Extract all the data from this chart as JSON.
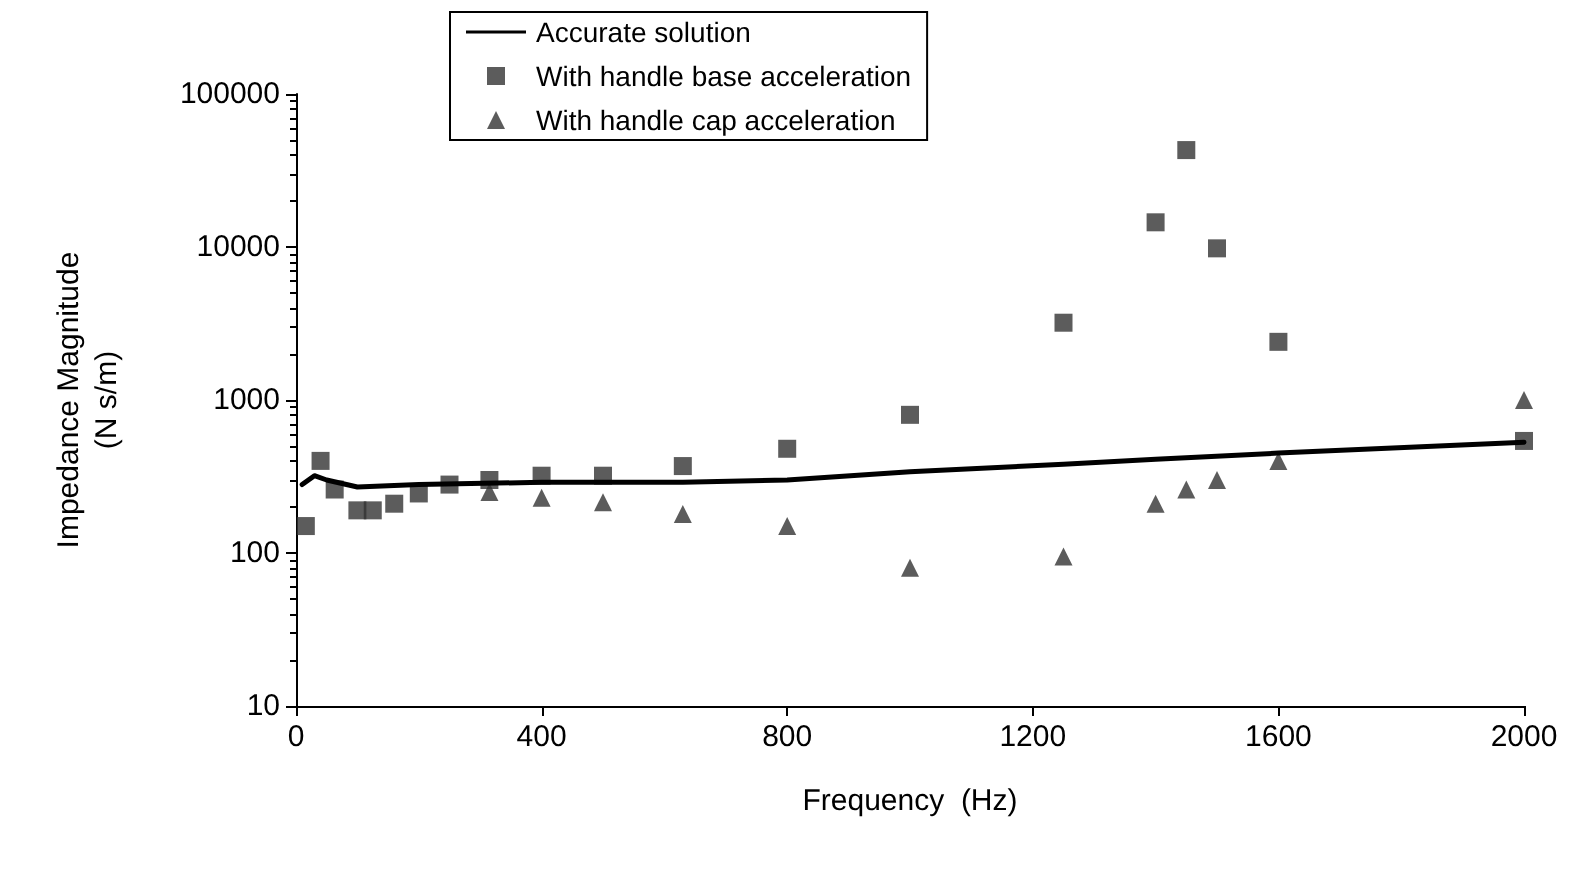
{
  "chart_data": {
    "type": "scatter",
    "xlabel": "Frequency  (Hz)",
    "ylabel": "Impedance Magnitude\n(N s/m)",
    "xlim": [
      0,
      2000
    ],
    "xticks": [
      0,
      400,
      800,
      1200,
      1600,
      2000
    ],
    "ylim": [
      10,
      100000
    ],
    "yticks": [
      10,
      100,
      1000,
      10000,
      100000
    ],
    "log": "y",
    "grid": false,
    "legend": "top left",
    "series": [
      {
        "name": "Accurate solution",
        "type": "line",
        "color": "#000000",
        "marker": "none",
        "line_style": "solid",
        "x": [
          10,
          30,
          50,
          100,
          200,
          400,
          630,
          800,
          1000,
          1250,
          1400,
          1600,
          2000
        ],
        "values": [
          280,
          320,
          300,
          270,
          280,
          290,
          290,
          300,
          340,
          380,
          410,
          450,
          530
        ]
      },
      {
        "name": "With handle base acceleration",
        "color": "#333333",
        "marker": "square",
        "x": [
          16,
          31.5,
          40,
          63,
          100,
          125,
          160,
          200,
          250,
          315,
          400,
          500,
          630,
          800,
          1000,
          1250,
          1400,
          1450,
          1500,
          1600,
          2000
        ],
        "values": [
          150,
          null,
          400,
          260,
          190,
          190,
          210,
          245,
          280,
          300,
          320,
          320,
          370,
          480,
          800,
          3200,
          14500,
          43000,
          9800,
          2400,
          540
        ]
      },
      {
        "name": "With handle cap acceleration",
        "color": "#333333",
        "marker": "triangle",
        "x": [
          315,
          400,
          500,
          630,
          800,
          1000,
          1250,
          1400,
          1450,
          1500,
          1600,
          2000
        ],
        "values": [
          250,
          230,
          215,
          180,
          150,
          80,
          95,
          210,
          260,
          300,
          400,
          1000
        ]
      }
    ]
  }
}
